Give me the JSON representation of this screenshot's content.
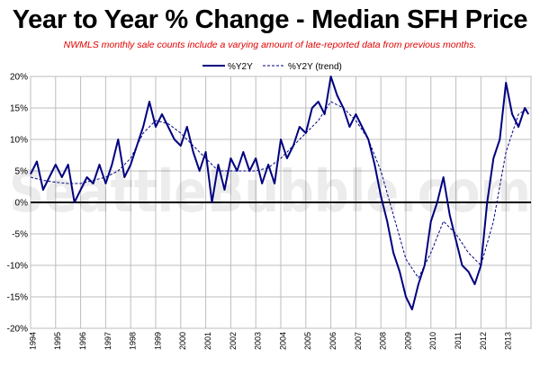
{
  "chart_data": {
    "type": "line",
    "title": "Year to Year % Change - Median SFH Price",
    "subtitle": "NWMLS monthly sale counts include a varying amount of late-reported  data from previous months.",
    "watermark": "SeattleBubble.com",
    "xlabel": "",
    "ylabel": "",
    "ylim": [
      -20,
      20
    ],
    "yticks": [
      20,
      15,
      10,
      5,
      0,
      -5,
      -10,
      -15,
      -20
    ],
    "ytick_labels": [
      "20%",
      "15%",
      "10%",
      "5%",
      "0%",
      "-5%",
      "-10%",
      "-15%",
      "-20%"
    ],
    "xlim": [
      1994.0,
      2014.0
    ],
    "xtick_labels": [
      "1994",
      "1995",
      "1996",
      "1997",
      "1998",
      "1999",
      "2000",
      "2001",
      "2002",
      "2003",
      "2004",
      "2005",
      "2006",
      "2007",
      "2008",
      "2009",
      "2010",
      "2011",
      "2012",
      "2013"
    ],
    "grid": true,
    "legend": "top-center",
    "zero_line": true,
    "series": [
      {
        "name": "%Y2Y",
        "style": "solid",
        "color": "#000080",
        "points": [
          [
            1994.0,
            4.5
          ],
          [
            1994.25,
            6.5
          ],
          [
            1994.5,
            2
          ],
          [
            1994.75,
            4
          ],
          [
            1995.0,
            6
          ],
          [
            1995.25,
            4
          ],
          [
            1995.5,
            6
          ],
          [
            1995.75,
            0
          ],
          [
            1996.0,
            2
          ],
          [
            1996.25,
            4
          ],
          [
            1996.5,
            3
          ],
          [
            1996.75,
            6
          ],
          [
            1997.0,
            3
          ],
          [
            1997.25,
            6
          ],
          [
            1997.5,
            10
          ],
          [
            1997.75,
            4
          ],
          [
            1998.0,
            6
          ],
          [
            1998.25,
            9
          ],
          [
            1998.5,
            12
          ],
          [
            1998.75,
            16
          ],
          [
            1999.0,
            12
          ],
          [
            1999.25,
            14
          ],
          [
            1999.5,
            12
          ],
          [
            1999.75,
            10
          ],
          [
            2000.0,
            9
          ],
          [
            2000.25,
            12
          ],
          [
            2000.5,
            8
          ],
          [
            2000.75,
            5
          ],
          [
            2001.0,
            8
          ],
          [
            2001.25,
            0
          ],
          [
            2001.5,
            6
          ],
          [
            2001.75,
            2
          ],
          [
            2002.0,
            7
          ],
          [
            2002.25,
            5
          ],
          [
            2002.5,
            8
          ],
          [
            2002.75,
            5
          ],
          [
            2003.0,
            7
          ],
          [
            2003.25,
            3
          ],
          [
            2003.5,
            6
          ],
          [
            2003.75,
            3
          ],
          [
            2004.0,
            10
          ],
          [
            2004.25,
            7
          ],
          [
            2004.5,
            9
          ],
          [
            2004.75,
            12
          ],
          [
            2005.0,
            11
          ],
          [
            2005.25,
            15
          ],
          [
            2005.5,
            16
          ],
          [
            2005.75,
            14
          ],
          [
            2006.0,
            20
          ],
          [
            2006.25,
            17
          ],
          [
            2006.5,
            15
          ],
          [
            2006.75,
            12
          ],
          [
            2007.0,
            14
          ],
          [
            2007.25,
            12
          ],
          [
            2007.5,
            10
          ],
          [
            2007.75,
            6
          ],
          [
            2008.0,
            1
          ],
          [
            2008.25,
            -3
          ],
          [
            2008.5,
            -8
          ],
          [
            2008.75,
            -11
          ],
          [
            2009.0,
            -15
          ],
          [
            2009.25,
            -17
          ],
          [
            2009.5,
            -13
          ],
          [
            2009.75,
            -10
          ],
          [
            2010.0,
            -3
          ],
          [
            2010.25,
            0
          ],
          [
            2010.5,
            4
          ],
          [
            2010.75,
            -2
          ],
          [
            2011.0,
            -6
          ],
          [
            2011.25,
            -10
          ],
          [
            2011.5,
            -11
          ],
          [
            2011.75,
            -13
          ],
          [
            2012.0,
            -10
          ],
          [
            2012.25,
            0
          ],
          [
            2012.5,
            7
          ],
          [
            2012.75,
            10
          ],
          [
            2013.0,
            19
          ],
          [
            2013.25,
            14
          ],
          [
            2013.5,
            12
          ],
          [
            2013.75,
            15
          ],
          [
            2013.9,
            14
          ]
        ]
      },
      {
        "name": "%Y2Y (trend)",
        "style": "dashed",
        "color": "#000080",
        "points": [
          [
            1994.0,
            4
          ],
          [
            1994.5,
            3.5
          ],
          [
            1995.0,
            3.2
          ],
          [
            1995.5,
            3
          ],
          [
            1996.0,
            3
          ],
          [
            1996.5,
            3.5
          ],
          [
            1997.0,
            4
          ],
          [
            1997.5,
            5
          ],
          [
            1998.0,
            7
          ],
          [
            1998.5,
            11
          ],
          [
            1999.0,
            13
          ],
          [
            1999.5,
            12.5
          ],
          [
            2000.0,
            11
          ],
          [
            2000.5,
            9
          ],
          [
            2001.0,
            7
          ],
          [
            2001.5,
            5
          ],
          [
            2002.0,
            5
          ],
          [
            2002.5,
            5
          ],
          [
            2003.0,
            5
          ],
          [
            2003.5,
            5.5
          ],
          [
            2004.0,
            7
          ],
          [
            2004.5,
            9
          ],
          [
            2005.0,
            11
          ],
          [
            2005.5,
            13
          ],
          [
            2006.0,
            16
          ],
          [
            2006.5,
            15
          ],
          [
            2007.0,
            13
          ],
          [
            2007.5,
            10
          ],
          [
            2008.0,
            5
          ],
          [
            2008.5,
            -2
          ],
          [
            2009.0,
            -9
          ],
          [
            2009.5,
            -12
          ],
          [
            2010.0,
            -8
          ],
          [
            2010.5,
            -3
          ],
          [
            2011.0,
            -5
          ],
          [
            2011.5,
            -8
          ],
          [
            2012.0,
            -10
          ],
          [
            2012.5,
            -3
          ],
          [
            2013.0,
            8
          ],
          [
            2013.5,
            14
          ],
          [
            2013.9,
            15
          ]
        ]
      }
    ]
  }
}
